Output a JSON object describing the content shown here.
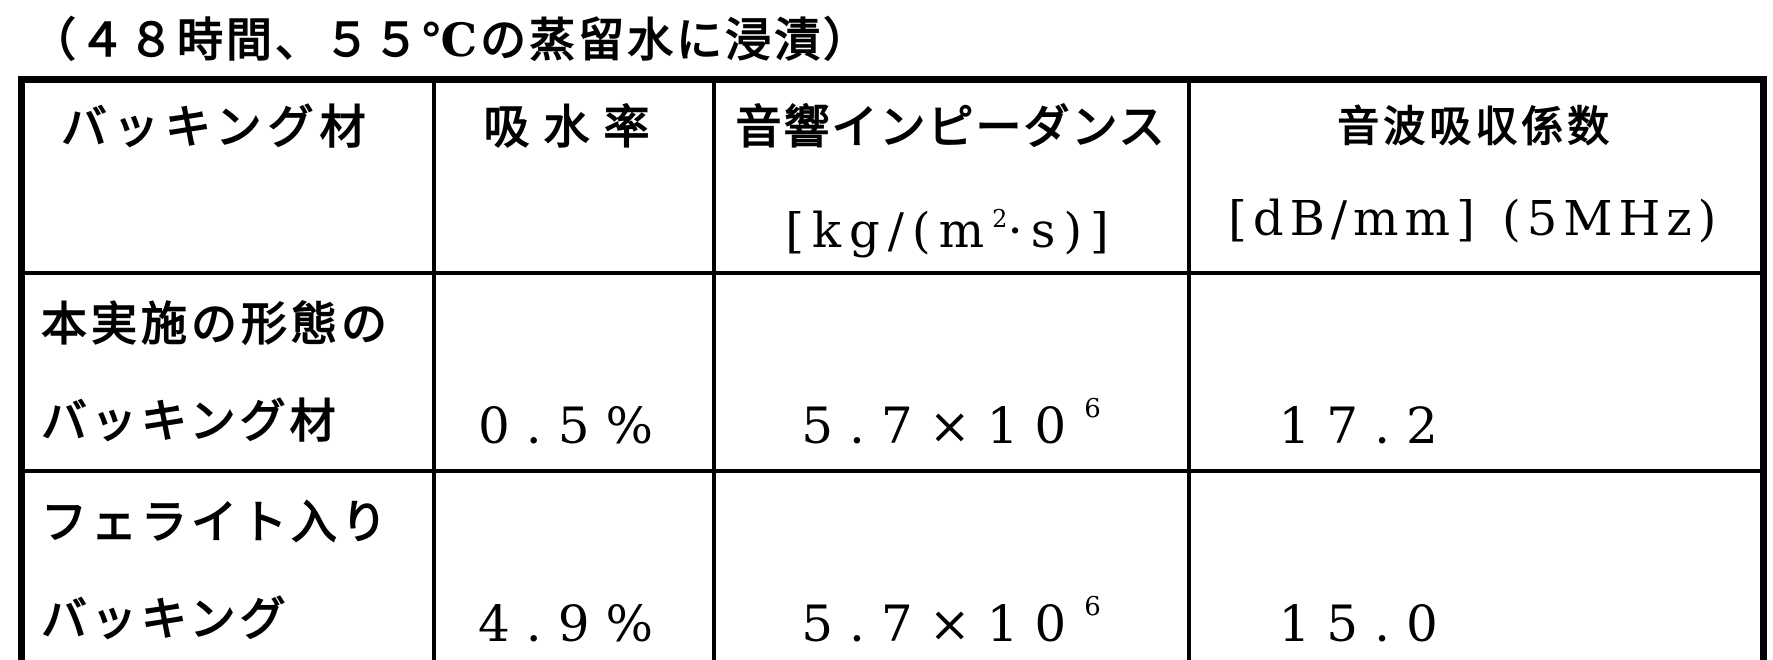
{
  "caption": "（４８時間、５５℃の蒸留水に浸漬）",
  "table": {
    "headers": {
      "material": {
        "line1": "バッキング材"
      },
      "water_absorption": {
        "line1": "吸水率"
      },
      "acoustic_impedance": {
        "line1": "音響インピーダンス",
        "unit_pre": "[kg/(m",
        "unit_sup": "2",
        "unit_post": "·s)]"
      },
      "sound_absorption": {
        "line1": "音波吸収係数",
        "line2": "[dB/mm] (5MHz)"
      }
    },
    "rows": [
      {
        "material_line1": "本実施の形態の",
        "material_line2": "バッキング材",
        "water_absorption": "0.5%",
        "impedance_base": "5.7×10",
        "impedance_exp": "6",
        "absorption_coeff": "17.2"
      },
      {
        "material_line1": "フェライト入り",
        "material_line2": "バッキング",
        "water_absorption": "4.9%",
        "impedance_base": "5.7×10",
        "impedance_exp": "6",
        "absorption_coeff": "15.0"
      }
    ]
  }
}
